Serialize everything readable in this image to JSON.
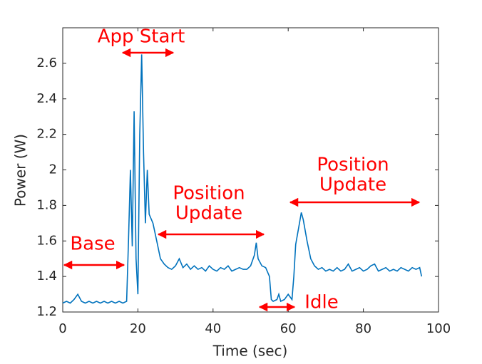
{
  "chart_data": {
    "type": "line",
    "x_label": "Time (sec)",
    "y_label": "Power (W)",
    "x": [
      0,
      1,
      2,
      3,
      4,
      5,
      6,
      7,
      8,
      9,
      10,
      11,
      12,
      13,
      14,
      15,
      16,
      17,
      17.5,
      18,
      18.5,
      19,
      19.5,
      20,
      20.5,
      21,
      21.5,
      22,
      22.5,
      23,
      24,
      25,
      26,
      27,
      28,
      29,
      30,
      31,
      32,
      33,
      34,
      35,
      36,
      37,
      38,
      39,
      40,
      41,
      42,
      43,
      44,
      45,
      46,
      47,
      48,
      49,
      50,
      51,
      51.5,
      52,
      53,
      54,
      55,
      55.5,
      56,
      57,
      57.5,
      58,
      59,
      60,
      61,
      61.5,
      62,
      63,
      63.5,
      64,
      65,
      66,
      67,
      68,
      69,
      70,
      71,
      72,
      73,
      74,
      75,
      76,
      77,
      78,
      79,
      80,
      81,
      82,
      83,
      84,
      85,
      86,
      87,
      88,
      89,
      90,
      91,
      92,
      93,
      94,
      95,
      95.5
    ],
    "series": [
      {
        "color": "#0072bd",
        "values": [
          1.25,
          1.26,
          1.25,
          1.27,
          1.3,
          1.26,
          1.25,
          1.26,
          1.25,
          1.26,
          1.25,
          1.26,
          1.25,
          1.26,
          1.25,
          1.26,
          1.25,
          1.26,
          1.6,
          2.0,
          1.57,
          2.33,
          1.5,
          1.3,
          2.2,
          2.65,
          2.1,
          1.7,
          2.0,
          1.75,
          1.7,
          1.6,
          1.5,
          1.47,
          1.45,
          1.44,
          1.46,
          1.5,
          1.45,
          1.47,
          1.44,
          1.46,
          1.44,
          1.45,
          1.43,
          1.46,
          1.44,
          1.43,
          1.45,
          1.44,
          1.46,
          1.43,
          1.44,
          1.45,
          1.44,
          1.44,
          1.46,
          1.52,
          1.59,
          1.5,
          1.46,
          1.45,
          1.4,
          1.27,
          1.26,
          1.27,
          1.3,
          1.26,
          1.27,
          1.3,
          1.27,
          1.4,
          1.58,
          1.7,
          1.76,
          1.72,
          1.6,
          1.5,
          1.46,
          1.44,
          1.45,
          1.43,
          1.44,
          1.43,
          1.45,
          1.43,
          1.44,
          1.47,
          1.43,
          1.44,
          1.45,
          1.43,
          1.44,
          1.46,
          1.47,
          1.43,
          1.44,
          1.45,
          1.43,
          1.44,
          1.43,
          1.45,
          1.44,
          1.43,
          1.45,
          1.44,
          1.45,
          1.4
        ]
      }
    ],
    "xlim": [
      0,
      100
    ],
    "xticks": [
      0,
      20,
      40,
      60,
      80,
      100
    ],
    "ylim": [
      1.2,
      2.8
    ],
    "yticks": [
      1.2,
      1.4,
      1.6,
      1.8,
      2,
      2.2,
      2.4,
      2.6
    ],
    "annotations": [
      [
        "App Start"
      ],
      [
        "Base"
      ],
      [
        "Position",
        "Update"
      ],
      [
        "Idle"
      ],
      [
        "Position",
        "Update"
      ]
    ]
  }
}
